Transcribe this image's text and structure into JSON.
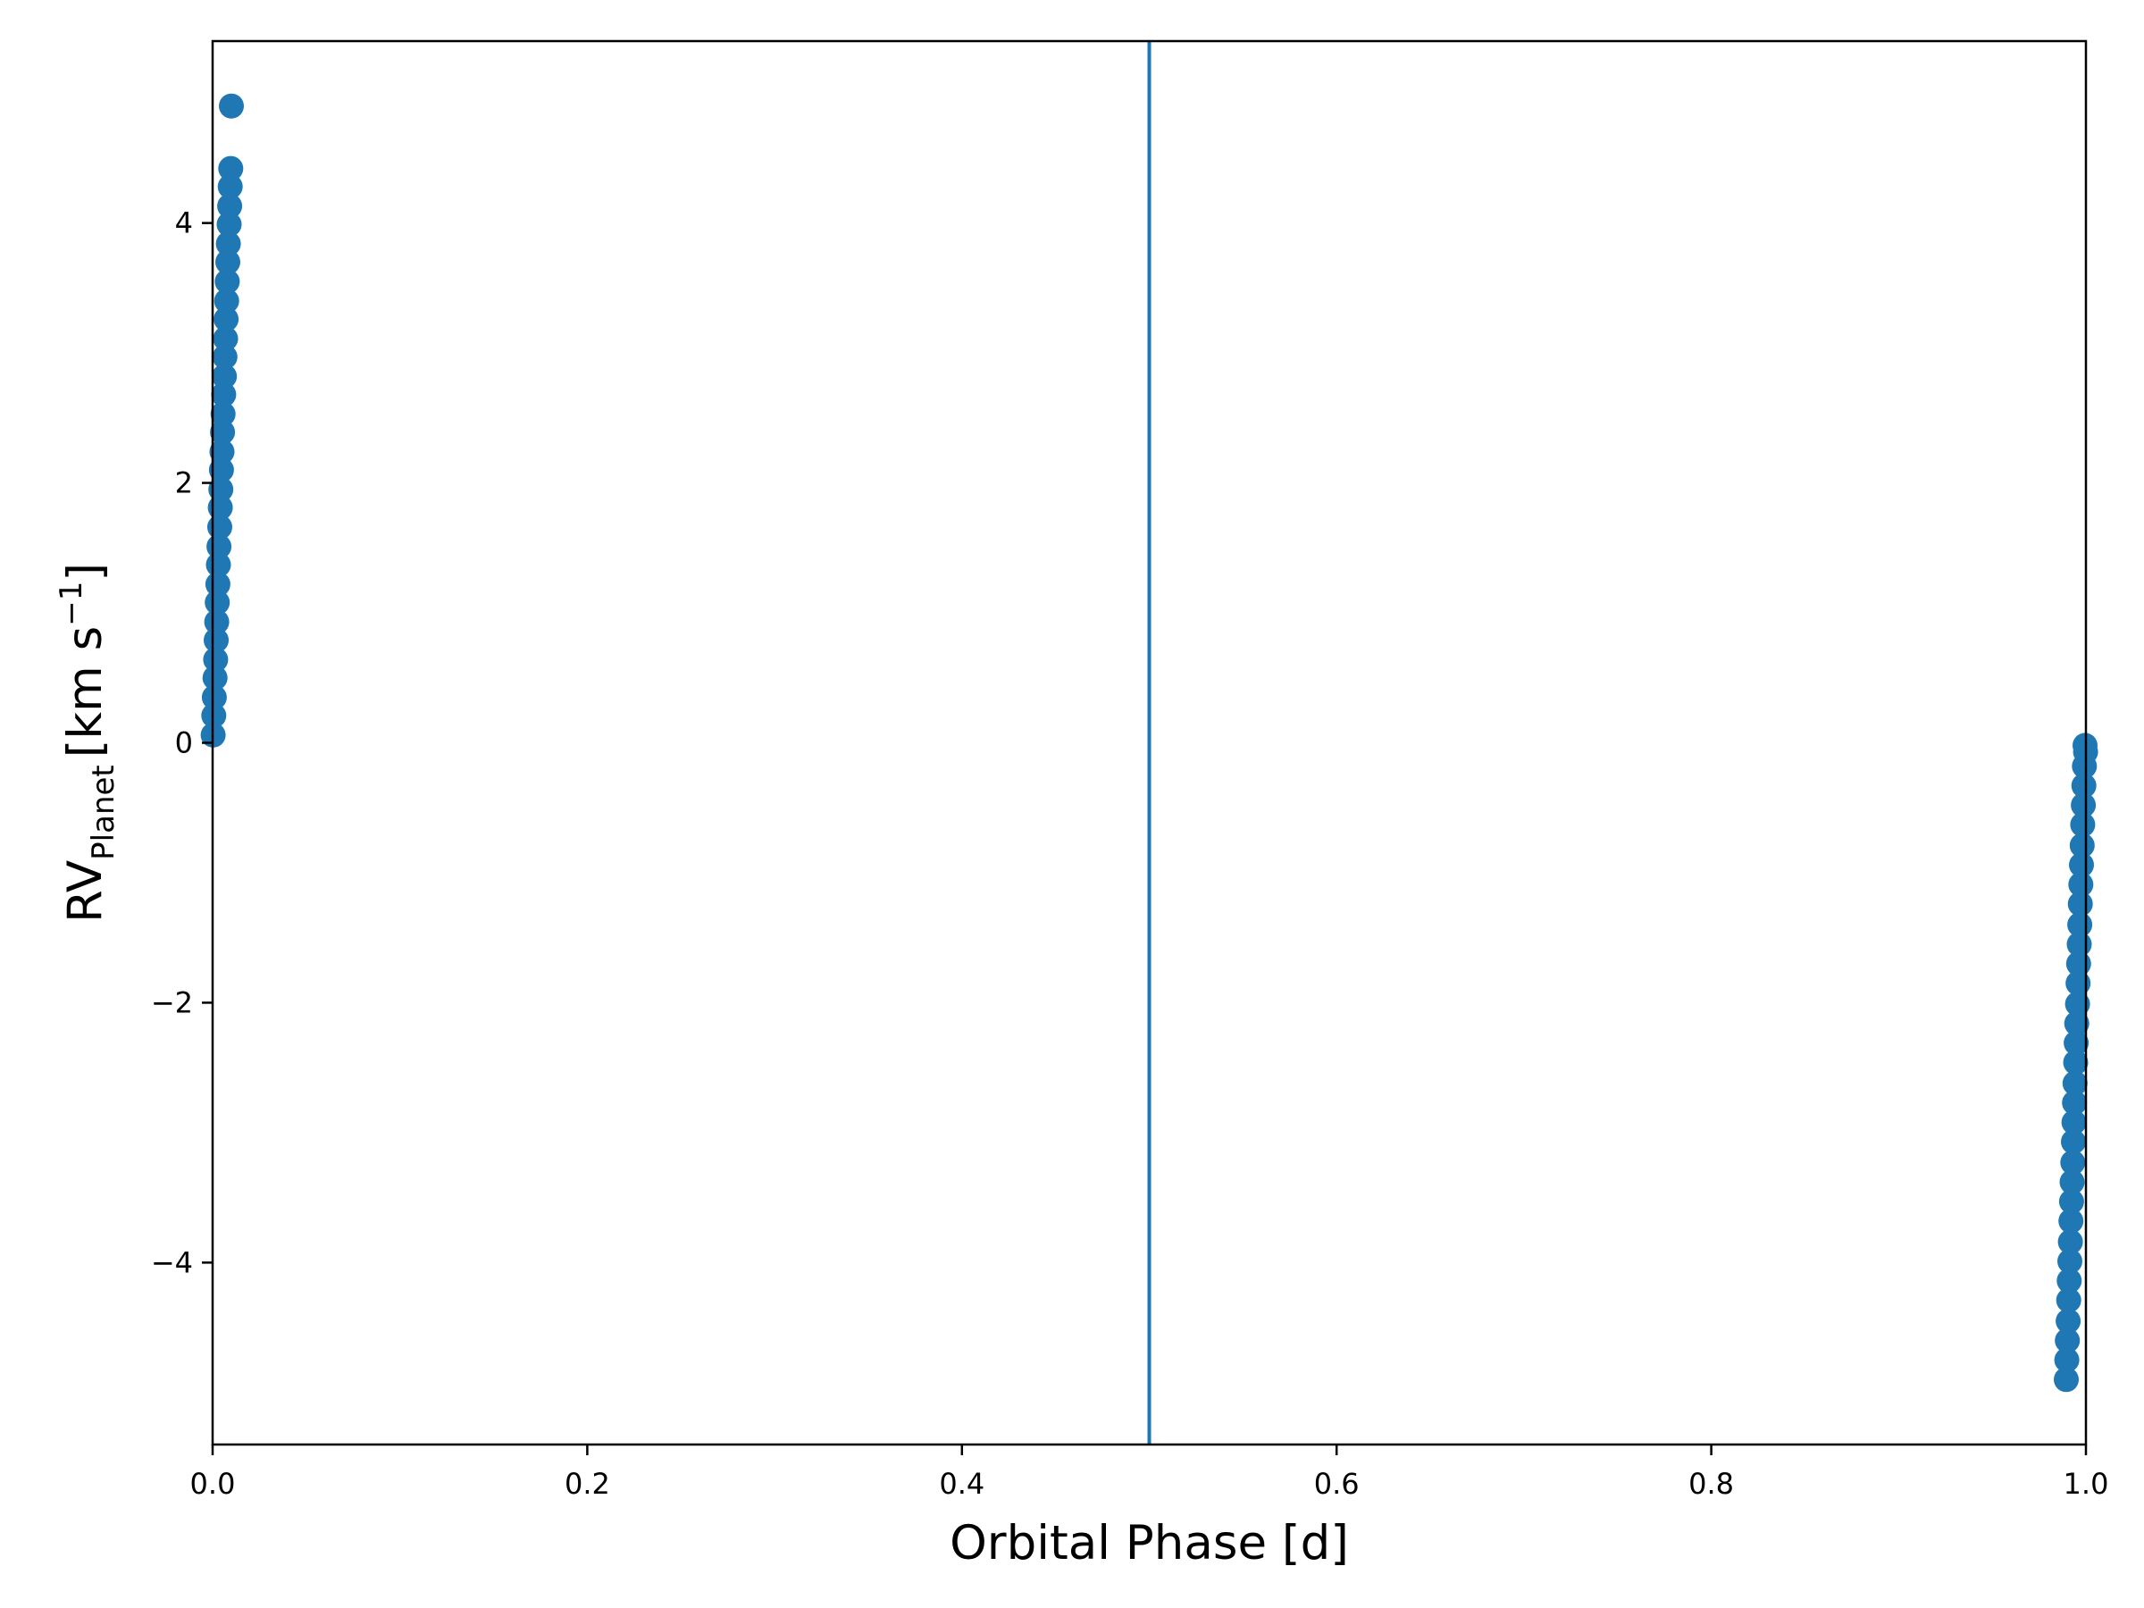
{
  "chart_data": {
    "type": "scatter",
    "xlabel": "Orbital Phase [d]",
    "ylabel": {
      "base": "RV",
      "subscript": "Planet",
      "units": "[km s",
      "superscript": "−1",
      "close": "]"
    },
    "xlim": [
      0.0,
      1.0
    ],
    "ylim": [
      -5.4,
      5.4
    ],
    "xticks": [
      {
        "value": 0.0,
        "label": "0.0"
      },
      {
        "value": 0.2,
        "label": "0.2"
      },
      {
        "value": 0.4,
        "label": "0.4"
      },
      {
        "value": 0.6,
        "label": "0.6"
      },
      {
        "value": 0.8,
        "label": "0.8"
      },
      {
        "value": 1.0,
        "label": "1.0"
      }
    ],
    "yticks": [
      {
        "value": -4,
        "label": "−4"
      },
      {
        "value": -2,
        "label": "−2"
      },
      {
        "value": 0,
        "label": "0"
      },
      {
        "value": 2,
        "label": "2"
      },
      {
        "value": 4,
        "label": "4"
      }
    ],
    "grid": false,
    "color": "#1f77b4",
    "vline": {
      "x": 0.5
    },
    "series": [
      {
        "x": [
          0.0003,
          0.0006,
          0.0009,
          0.0013,
          0.0016,
          0.0019,
          0.0022,
          0.0025,
          0.0028,
          0.0031,
          0.0034,
          0.0038,
          0.0041,
          0.0044,
          0.0047,
          0.005,
          0.0053,
          0.0056,
          0.0059,
          0.0063,
          0.0066,
          0.0069,
          0.0072,
          0.0075,
          0.0078,
          0.0081,
          0.0084,
          0.0088,
          0.0091,
          0.0094,
          0.0097,
          0.01,
          0.9895,
          0.9898,
          0.9901,
          0.9905,
          0.9908,
          0.9911,
          0.9914,
          0.9917,
          0.992,
          0.9923,
          0.9926,
          0.993,
          0.9933,
          0.9936,
          0.9939,
          0.9942,
          0.9945,
          0.9948,
          0.9951,
          0.9955,
          0.9958,
          0.9961,
          0.9964,
          0.9967,
          0.997,
          0.9973,
          0.9976,
          0.998,
          0.9983,
          0.9986,
          0.9989,
          0.9992,
          0.9995,
          0.9998
        ],
        "y": [
          0.06,
          0.21,
          0.35,
          0.5,
          0.64,
          0.79,
          0.93,
          1.08,
          1.22,
          1.37,
          1.51,
          1.66,
          1.81,
          1.95,
          2.1,
          2.24,
          2.39,
          2.53,
          2.68,
          2.82,
          2.97,
          3.11,
          3.26,
          3.4,
          3.55,
          3.7,
          3.84,
          3.99,
          4.13,
          4.28,
          4.42,
          4.9,
          -4.9,
          -4.75,
          -4.6,
          -4.45,
          -4.29,
          -4.14,
          -3.99,
          -3.84,
          -3.68,
          -3.53,
          -3.38,
          -3.23,
          -3.07,
          -2.92,
          -2.77,
          -2.62,
          -2.46,
          -2.31,
          -2.16,
          -2.01,
          -1.85,
          -1.7,
          -1.55,
          -1.4,
          -1.24,
          -1.09,
          -0.94,
          -0.79,
          -0.63,
          -0.48,
          -0.33,
          -0.18,
          -0.02,
          -0.07
        ]
      }
    ]
  }
}
